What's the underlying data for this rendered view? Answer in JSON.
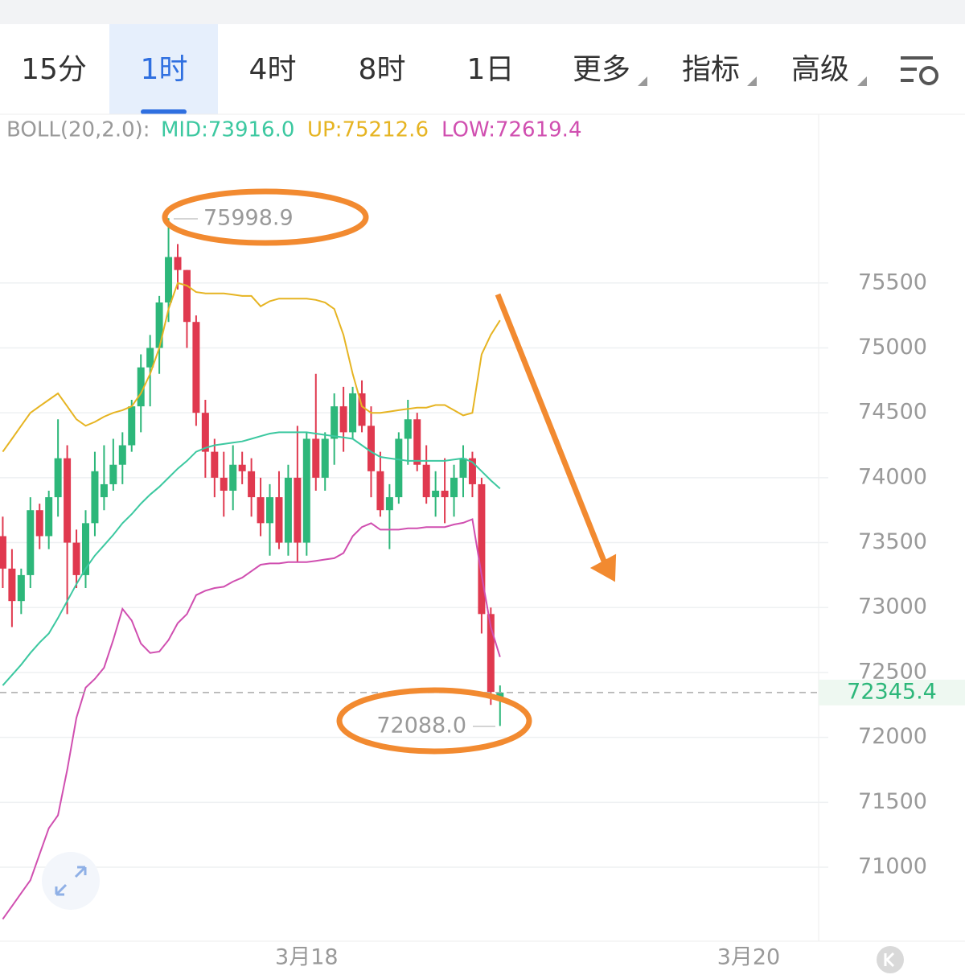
{
  "tabs": [
    "15分",
    "1时",
    "4时",
    "8时",
    "1日",
    "更多",
    "指标",
    "高级"
  ],
  "active_tab": 1,
  "chart_data": {
    "type": "candlestick",
    "indicator": "BOLL(20,2.0):",
    "indicator_labels": [
      "MID:73916.0",
      "UP:75212.6",
      "LOW:72619.4"
    ],
    "xlim": [
      -0.3,
      88.6
    ],
    "xticks": [
      {
        "value": 33,
        "label": "3月18"
      },
      {
        "value": 81,
        "label": "3月20"
      }
    ],
    "ylim": [
      70430,
      76800
    ],
    "yticks": [
      71000,
      71500,
      72000,
      72500,
      73000,
      73500,
      74000,
      74500,
      75000,
      75500
    ],
    "grid": true,
    "up_color": "#2db77a",
    "down_color": "#e0394f",
    "open": [
      73550,
      73300,
      73050,
      73250,
      73750,
      73550,
      73850,
      74150,
      73500,
      73250,
      73650,
      73850,
      73950,
      74100,
      74250,
      74550,
      74850,
      75000,
      75350,
      75700,
      75600,
      75200,
      74500,
      74200,
      74000,
      73900,
      74100,
      74050,
      73850,
      73650,
      73850,
      73500,
      74000,
      73500,
      74300,
      74000,
      74300,
      74550,
      74350,
      74650,
      74400,
      74050,
      73750,
      73850,
      74300,
      74450,
      74100,
      73850,
      73900,
      73850,
      74000,
      74150,
      73950,
      72950,
      72300
    ],
    "high": [
      73700,
      73450,
      73300,
      73850,
      73800,
      73900,
      74450,
      74250,
      73600,
      73750,
      74200,
      74250,
      74300,
      74350,
      74600,
      74950,
      75100,
      75400,
      75998.9,
      75800,
      75600,
      75250,
      74600,
      74300,
      74200,
      74250,
      74200,
      74150,
      74000,
      73950,
      74050,
      74100,
      74400,
      74350,
      74800,
      74350,
      74650,
      74700,
      74700,
      74750,
      74550,
      74200,
      73950,
      74350,
      74600,
      74500,
      74250,
      74050,
      74150,
      74100,
      74250,
      74200,
      74000,
      73000,
      72400
    ],
    "low": [
      73150,
      72850,
      72950,
      73150,
      73450,
      73450,
      73700,
      72950,
      73150,
      73150,
      73550,
      73750,
      73900,
      73950,
      74200,
      74350,
      74550,
      74800,
      75200,
      75450,
      75000,
      74400,
      74000,
      73850,
      73700,
      73750,
      73950,
      73700,
      73550,
      73400,
      73450,
      73400,
      73350,
      73400,
      73900,
      73900,
      74100,
      74200,
      74300,
      74350,
      73850,
      73700,
      73450,
      73800,
      74100,
      74050,
      73800,
      73700,
      73650,
      73700,
      73850,
      73850,
      72800,
      72250,
      72088.0
    ],
    "close": [
      73300,
      73050,
      73250,
      73750,
      73550,
      73850,
      74150,
      73500,
      73250,
      73650,
      74050,
      73950,
      74100,
      74250,
      74550,
      74850,
      75000,
      75350,
      75700,
      75600,
      75200,
      74500,
      74200,
      74000,
      73900,
      74100,
      74050,
      73850,
      73650,
      73850,
      73500,
      74000,
      73500,
      74300,
      74000,
      74300,
      74550,
      74350,
      74650,
      74400,
      74050,
      73750,
      73850,
      74300,
      74450,
      74100,
      73850,
      73900,
      73850,
      74000,
      74150,
      73950,
      72950,
      72350,
      72345.4
    ],
    "series": [
      {
        "name": "UP",
        "color": "#e6b422",
        "values": [
          74200,
          74300,
          74400,
          74500,
          74550,
          74600,
          74650,
          74550,
          74450,
          74400,
          74430,
          74470,
          74500,
          74520,
          74550,
          74650,
          74800,
          75000,
          75300,
          75500,
          75480,
          75430,
          75420,
          75420,
          75420,
          75410,
          75400,
          75400,
          75320,
          75360,
          75380,
          75380,
          75380,
          75380,
          75370,
          75350,
          75300,
          75100,
          74800,
          74550,
          74500,
          74500,
          74510,
          74520,
          74530,
          74540,
          74540,
          74560,
          74560,
          74520,
          74480,
          74500,
          74950,
          75100,
          75212.6
        ]
      },
      {
        "name": "MID",
        "color": "#3cc8a0",
        "values": [
          72400,
          72480,
          72560,
          72650,
          72730,
          72800,
          72920,
          73050,
          73180,
          73300,
          73400,
          73480,
          73560,
          73650,
          73720,
          73800,
          73870,
          73930,
          74000,
          74070,
          74130,
          74200,
          74230,
          74250,
          74260,
          74270,
          74280,
          74300,
          74320,
          74340,
          74350,
          74350,
          74350,
          74350,
          74340,
          74330,
          74320,
          74310,
          74300,
          74250,
          74200,
          74160,
          74150,
          74140,
          74130,
          74130,
          74130,
          74130,
          74130,
          74140,
          74150,
          74120,
          74050,
          73980,
          73916.0
        ]
      },
      {
        "name": "LOW",
        "color": "#d04fb0",
        "values": [
          70600,
          70700,
          70800,
          70900,
          71100,
          71300,
          71400,
          71750,
          72150,
          72383,
          72450,
          72537,
          72750,
          72990,
          72900,
          72723,
          72650,
          72661,
          72750,
          72880,
          72950,
          73096,
          73130,
          73150,
          73160,
          73200,
          73230,
          73280,
          73330,
          73340,
          73340,
          73350,
          73350,
          73350,
          73360,
          73370,
          73380,
          73420,
          73550,
          73620,
          73650,
          73600,
          73600,
          73600,
          73610,
          73610,
          73620,
          73620,
          73620,
          73640,
          73653,
          73680,
          73250,
          72850,
          72619.4
        ]
      }
    ],
    "annotations": {
      "high": "75998.9",
      "low": "72088.0"
    },
    "last_price": 72345.4,
    "last_price_label": "72345.4"
  }
}
